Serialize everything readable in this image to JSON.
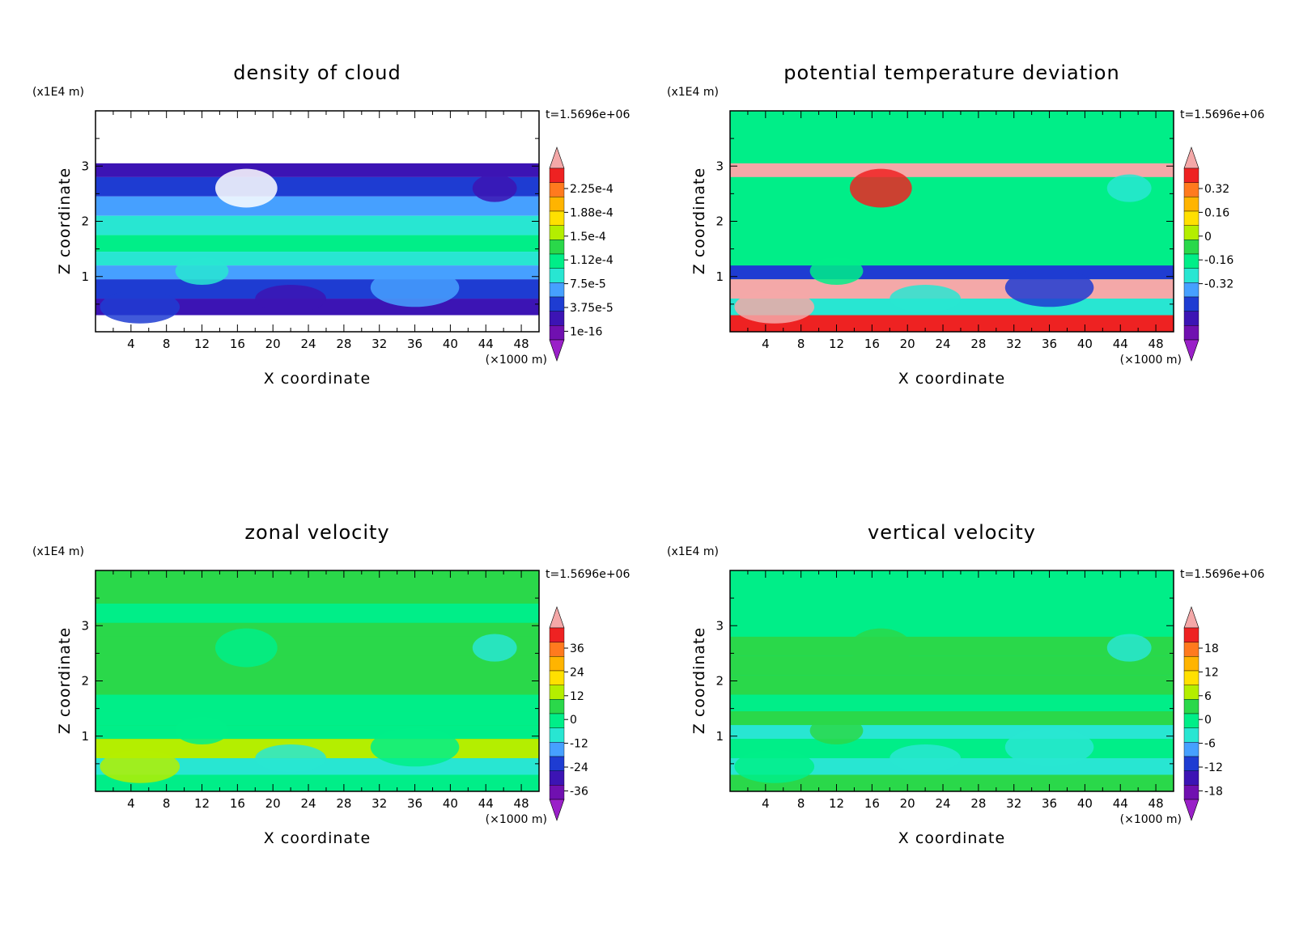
{
  "common": {
    "x_label": "X coordinate",
    "y_label": "Z coordinate",
    "x_units": "(×1000 m)",
    "y_units": "(x1E4 m)",
    "time_label": "t=1.5696e+06",
    "x_ticks": [
      "4",
      "8",
      "12",
      "16",
      "20",
      "24",
      "28",
      "32",
      "36",
      "40",
      "44",
      "48"
    ],
    "y_ticks": [
      "1",
      "2",
      "3"
    ]
  },
  "chart_data": [
    {
      "type": "heatmap",
      "title": "density of cloud",
      "xlabel": "X coordinate",
      "ylabel": "Z coordinate",
      "xlim": [
        0,
        50
      ],
      "ylim": [
        0,
        4
      ],
      "colorbar_labels": [
        "2.25e-4",
        "1.88e-4",
        "1.5e-4",
        "1.12e-4",
        "7.5e-5",
        "3.75e-5",
        "1e-16"
      ],
      "colors": [
        "#ffffff",
        "#ffffff",
        "#3c14b4",
        "#1e3cd2",
        "#46a0ff",
        "#28e6d2",
        "#00ee88",
        "#28e6d2",
        "#46a0ff",
        "#1e3cd2",
        "#3c14b4",
        "#ffffff"
      ]
    },
    {
      "type": "heatmap",
      "title": "potential temperature deviation",
      "xlabel": "X coordinate",
      "ylabel": "Z coordinate",
      "xlim": [
        0,
        50
      ],
      "ylim": [
        0,
        4
      ],
      "colorbar_labels": [
        "0.32",
        "0.16",
        "0",
        "-0.16",
        "-0.32"
      ],
      "colors": [
        "#00ee88",
        "#00ee88",
        "#f4a8a8",
        "#00ee88",
        "#00ee88",
        "#00ee88",
        "#00ee88",
        "#00ee88",
        "#1e3cd2",
        "#f4a8a8",
        "#28e6d2",
        "#ee2222"
      ]
    },
    {
      "type": "heatmap",
      "title": "zonal velocity",
      "xlabel": "X coordinate",
      "ylabel": "Z coordinate",
      "xlim": [
        0,
        50
      ],
      "ylim": [
        0,
        4
      ],
      "colorbar_labels": [
        "36",
        "24",
        "12",
        "0",
        "-12",
        "-24",
        "-36"
      ],
      "colors": [
        "#2ad84a",
        "#00ee88",
        "#2ad84a",
        "#2ad84a",
        "#2ad84a",
        "#2ad84a",
        "#00ee88",
        "#00ee88",
        "#00ee88",
        "#b4ee00",
        "#28e6d2",
        "#00ee88"
      ]
    },
    {
      "type": "heatmap",
      "title": "vertical velocity",
      "xlabel": "X coordinate",
      "ylabel": "Z coordinate",
      "xlim": [
        0,
        50
      ],
      "ylim": [
        0,
        4
      ],
      "colorbar_labels": [
        "18",
        "12",
        "6",
        "0",
        "-6",
        "-12",
        "-18"
      ],
      "colors": [
        "#00ee88",
        "#00ee88",
        "#00ee88",
        "#2ad84a",
        "#2ad84a",
        "#2ad84a",
        "#00ee88",
        "#2ad84a",
        "#28e6d2",
        "#00ee88",
        "#28e6d2",
        "#2ad84a"
      ]
    }
  ]
}
